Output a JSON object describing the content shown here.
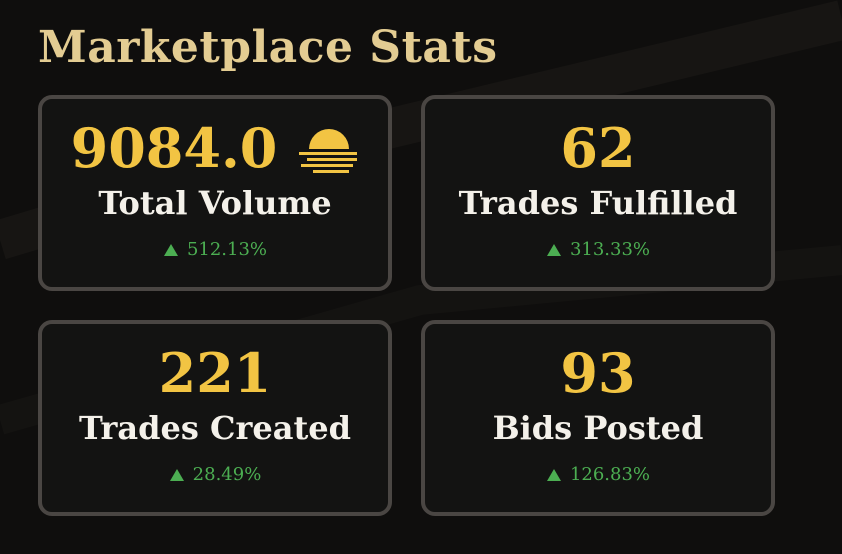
{
  "header": {
    "title": "Marketplace Stats"
  },
  "cards": [
    {
      "value": "9084.0",
      "label": "Total Volume",
      "change": "512.13%"
    },
    {
      "value": "62",
      "label": "Trades Fulfilled",
      "change": "313.33%"
    },
    {
      "value": "221",
      "label": "Trades Created",
      "change": "28.49%"
    },
    {
      "value": "93",
      "label": "Bids Posted",
      "change": "126.83%"
    }
  ]
}
